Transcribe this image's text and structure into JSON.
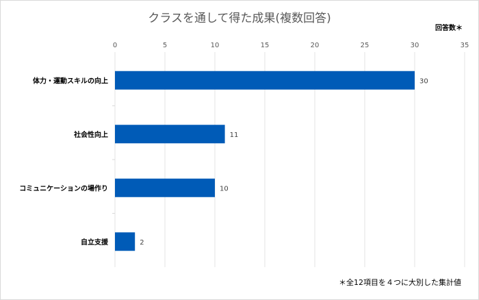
{
  "chart_data": {
    "type": "bar",
    "orientation": "horizontal",
    "title": "クラスを通して得た成果(複数回答)",
    "xlabel": "回答数＊",
    "ylabel": "",
    "categories": [
      "体力・運動スキルの向上",
      "社会性向上",
      "コミュニケーションの場作り",
      "自立支援"
    ],
    "values": [
      30,
      11,
      10,
      2
    ],
    "xlim": [
      0,
      35
    ],
    "ticks": [
      "0",
      "5",
      "10",
      "15",
      "20",
      "25",
      "30",
      "35"
    ],
    "data_labels": [
      "30",
      "11",
      "10",
      "2"
    ],
    "grid": true,
    "bar_color": "#005bb7",
    "footnote": "＊全12項目を４つに大別した集計値"
  }
}
